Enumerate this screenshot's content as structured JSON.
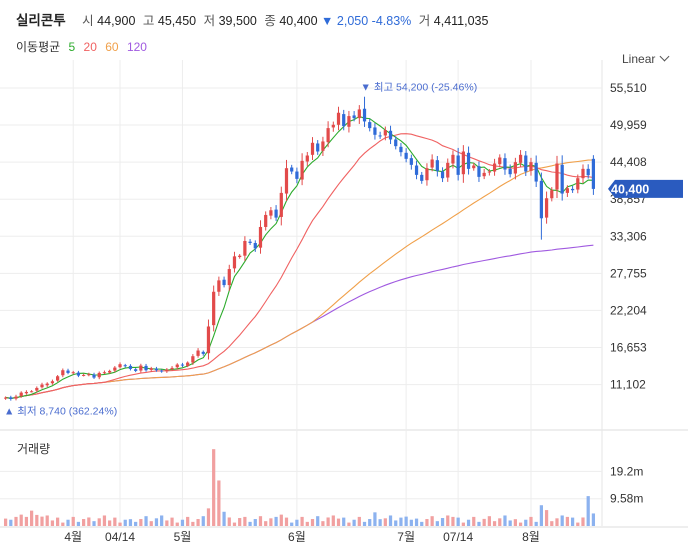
{
  "header": {
    "name": "실리콘투",
    "open_label": "시",
    "open": "44,900",
    "high_label": "고",
    "high": "45,450",
    "low_label": "저",
    "low": "39,500",
    "close_label": "종",
    "close": "40,400",
    "change_arrow": "▼",
    "change": "2,050",
    "change_pct": "-4.83%",
    "volume_label": "거",
    "volume": "4,411,035"
  },
  "ma_legend": {
    "label": "이동평균",
    "items": [
      {
        "label": "5",
        "color": "#2cab2c"
      },
      {
        "label": "20",
        "color": "#f06262"
      },
      {
        "label": "60",
        "color": "#f0a04a"
      },
      {
        "label": "120",
        "color": "#a05ae0"
      }
    ]
  },
  "scale_selector": {
    "label": "Linear"
  },
  "colors": {
    "up": "#e24a4a",
    "down": "#2f6bd8",
    "vol_up": "#f1a0a0",
    "vol_down": "#8cb2ef",
    "grid": "#ededed",
    "price_tag": "#2a5bbf"
  },
  "chart_data": {
    "type": "candlestick",
    "price_axis": {
      "ticks": [
        "55,510",
        "49,959",
        "44,408",
        "38,857",
        "33,306",
        "27,755",
        "22,204",
        "16,653",
        "11,102"
      ],
      "tick_values": [
        55510,
        49959,
        44408,
        38857,
        33306,
        27755,
        22204,
        16653,
        11102
      ],
      "ylim": [
        5800,
        58500
      ]
    },
    "current_price_tag": "40,400",
    "max_marker": {
      "arrow": "▼",
      "text": "최고 54,200 (-25.46%)",
      "value": 54200,
      "index": 69
    },
    "min_marker": {
      "arrow": "▲",
      "text": "최저 8,740 (362.24%)",
      "value": 8740,
      "index": 2
    },
    "x_ticks": [
      {
        "label": "4월",
        "index": 13
      },
      {
        "label": "04/14",
        "index": 22
      },
      {
        "label": "5월",
        "index": 34
      },
      {
        "label": "6월",
        "index": 56
      },
      {
        "label": "7월",
        "index": 77
      },
      {
        "label": "07/14",
        "index": 87
      },
      {
        "label": "8월",
        "index": 101
      }
    ],
    "volume_panel": {
      "title": "거래량",
      "ticks": [
        "19.2m",
        "9.58m"
      ],
      "tick_values": [
        19200000,
        9580000
      ],
      "ymax": 26000000
    },
    "ohlc": [],
    "volume": [],
    "ma5": [],
    "ma20": [],
    "ma60": [],
    "ma120": []
  }
}
